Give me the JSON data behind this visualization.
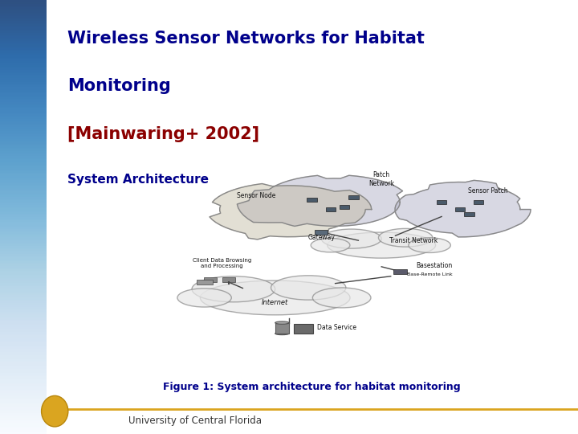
{
  "title_line1": "Wireless Sensor Networks for Habitat",
  "title_line2": "Monitoring",
  "title_line3": "[Mainwaring+ 2002]",
  "subtitle": "System Architecture",
  "figure_caption": "Figure 1: System architecture for habitat monitoring",
  "ucf_label": "University of Central Florida",
  "title_color_blue": "#00008B",
  "title_color_red": "#8B0000",
  "subtitle_color": "#00008B",
  "caption_color": "#00008B",
  "bg_main_color": "#ffffff",
  "left_bar_width": 0.08
}
